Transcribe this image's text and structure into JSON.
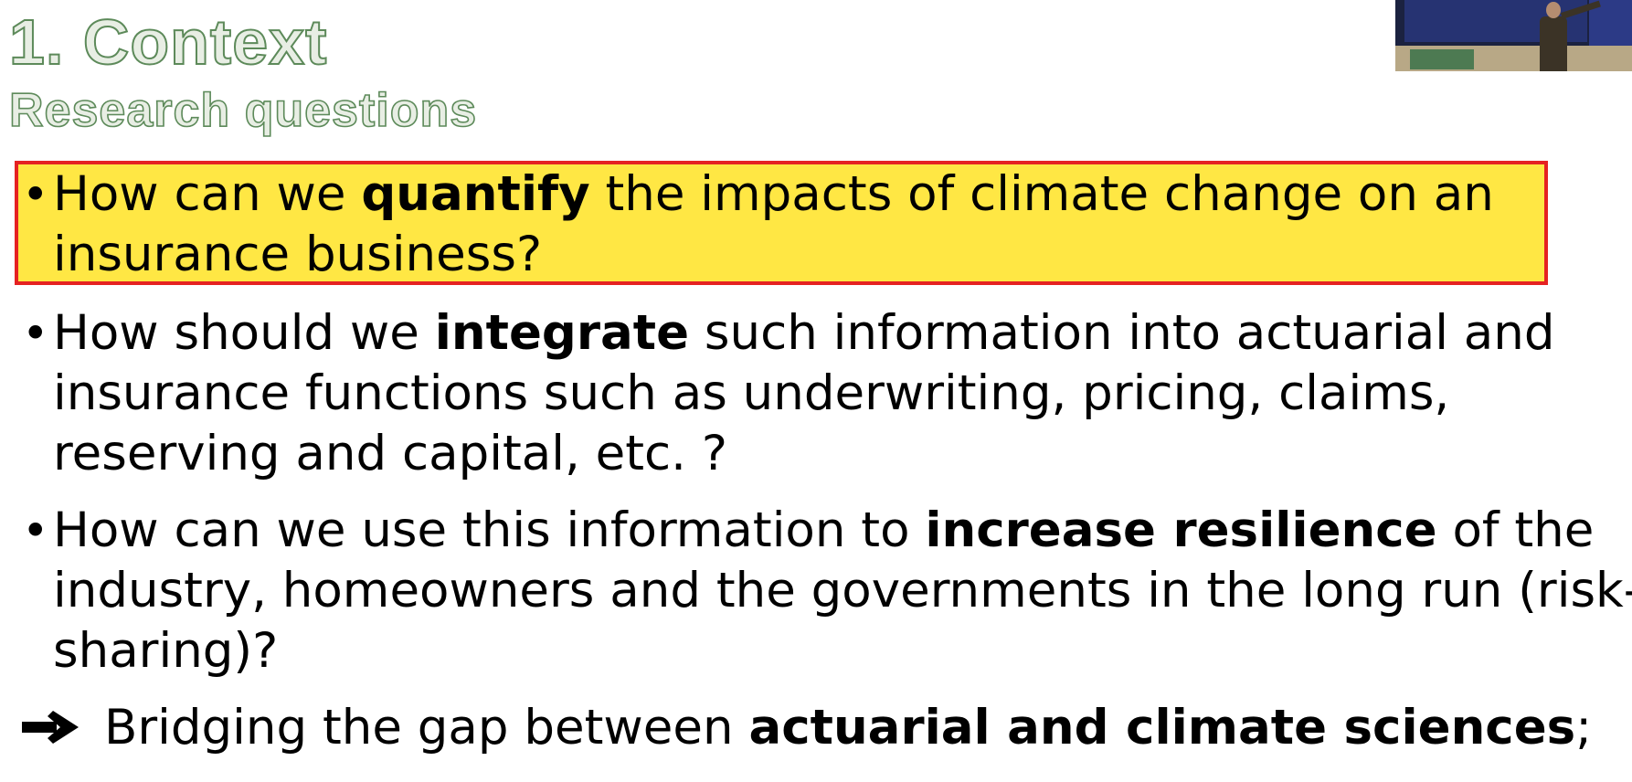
{
  "slide": {
    "title": "1. Context",
    "subtitle": "Research questions"
  },
  "bullets": [
    {
      "before": "How can we ",
      "bold": "quantify",
      "after": " the impacts of climate change on an insurance business?",
      "highlighted": true
    },
    {
      "before": "How should we ",
      "bold": "integrate",
      "after": " such information into actuarial and insurance functions such as underwriting, pricing, claims, reserving and capital, etc. ?",
      "highlighted": false
    },
    {
      "before": "How can we use this information to ",
      "bold": "increase resilience",
      "after": " of the industry, homeowners and the governments in the long run (risk-sharing)?",
      "highlighted": false
    }
  ],
  "conclusion": {
    "icon": "arrow-right-icon",
    "before": "Bridging the gap between ",
    "bold": "actuarial and climate sciences",
    "after": ";"
  },
  "colors": {
    "highlight_fill": "#ffe744",
    "highlight_border": "#e52222",
    "title_outline": "#5d8a5a"
  }
}
